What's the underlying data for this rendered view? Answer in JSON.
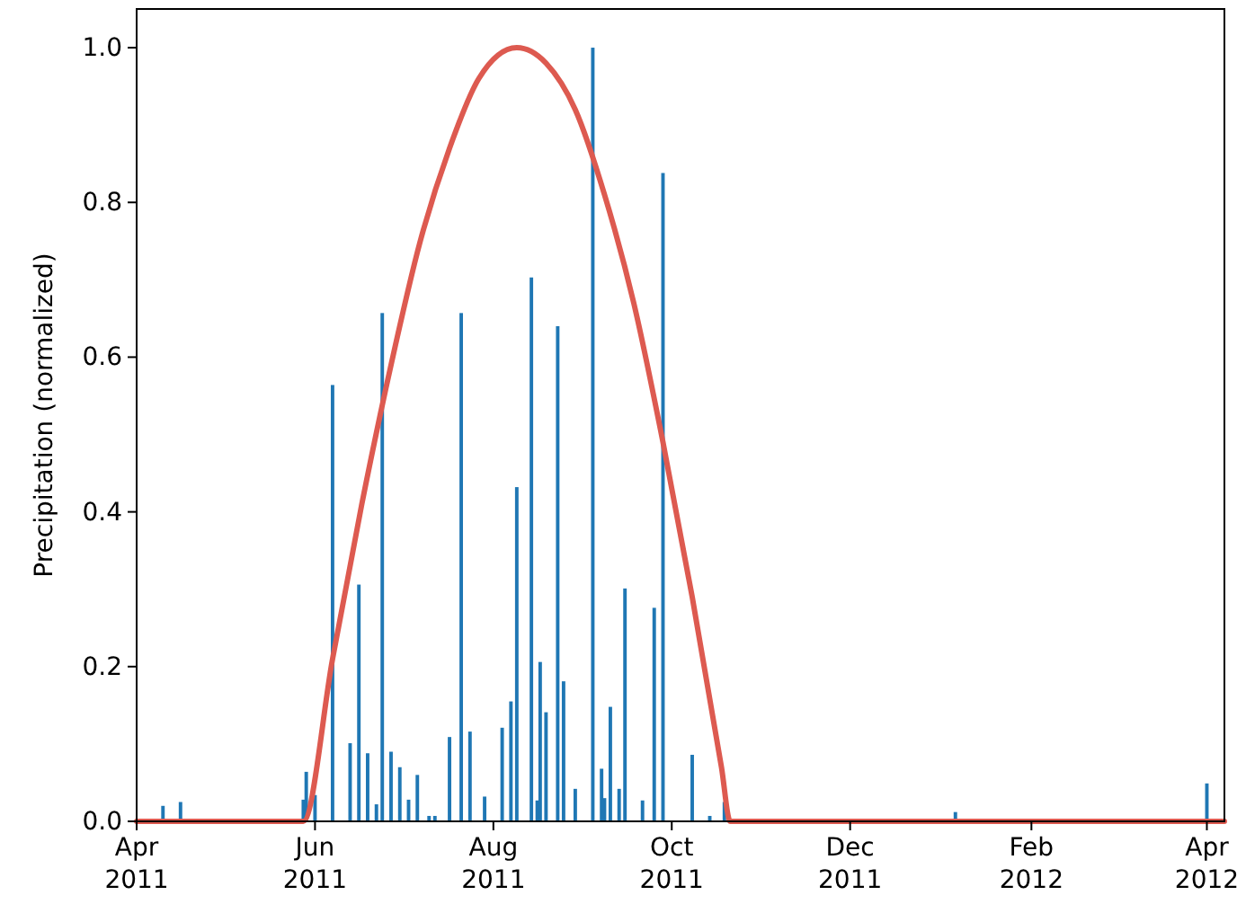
{
  "chart_data": {
    "type": "bar",
    "ylabel": "Precipitation (normalized)",
    "xlim": [
      "2011-04-01",
      "2012-04-07"
    ],
    "xticks": [
      {
        "value": "2011-04-01",
        "label": "Apr\n2011"
      },
      {
        "value": "2011-06-01",
        "label": "Jun\n2011"
      },
      {
        "value": "2011-08-01",
        "label": "Aug\n2011"
      },
      {
        "value": "2011-10-01",
        "label": "Oct\n2011"
      },
      {
        "value": "2011-12-01",
        "label": "Dec\n2011"
      },
      {
        "value": "2012-02-01",
        "label": "Feb\n2012"
      },
      {
        "value": "2012-04-01",
        "label": "Apr\n2012"
      }
    ],
    "ylim": [
      0,
      1.05
    ],
    "yticks": [
      {
        "value": 0,
        "label": "0.0"
      },
      {
        "value": 0.2,
        "label": "0.2"
      },
      {
        "value": 0.4,
        "label": "0.4"
      },
      {
        "value": 0.6,
        "label": "0.6"
      },
      {
        "value": 0.8,
        "label": "0.8"
      },
      {
        "value": 1,
        "label": "1.0"
      }
    ],
    "series": [
      {
        "color": "#1f77b4",
        "x": [
          "2011-04-10",
          "2011-04-16",
          "2011-05-28",
          "2011-05-29",
          "2011-06-01",
          "2011-06-07",
          "2011-06-13",
          "2011-06-16",
          "2011-06-19",
          "2011-06-22",
          "2011-06-24",
          "2011-06-27",
          "2011-06-30",
          "2011-07-03",
          "2011-07-06",
          "2011-07-10",
          "2011-07-12",
          "2011-07-17",
          "2011-07-21",
          "2011-07-24",
          "2011-07-29",
          "2011-08-04",
          "2011-08-07",
          "2011-08-09",
          "2011-08-14",
          "2011-08-16",
          "2011-08-17",
          "2011-08-19",
          "2011-08-23",
          "2011-08-25",
          "2011-08-29",
          "2011-09-04",
          "2011-09-07",
          "2011-09-08",
          "2011-09-10",
          "2011-09-13",
          "2011-09-15",
          "2011-09-21",
          "2011-09-25",
          "2011-09-28",
          "2011-10-08",
          "2011-10-14",
          "2011-10-19",
          "2012-01-06",
          "2012-04-01"
        ],
        "values": [
          0.02,
          0.025,
          0.028,
          0.064,
          0.034,
          0.564,
          0.101,
          0.306,
          0.088,
          0.022,
          0.657,
          0.09,
          0.07,
          0.028,
          0.06,
          0.007,
          0.007,
          0.109,
          0.657,
          0.116,
          0.032,
          0.121,
          0.155,
          0.432,
          0.703,
          0.027,
          0.206,
          0.141,
          0.64,
          0.181,
          0.042,
          1.0,
          0.068,
          0.03,
          0.148,
          0.042,
          0.301,
          0.027,
          0.276,
          0.838,
          0.086,
          0.007,
          0.025,
          0.012,
          0.049
        ]
      },
      {
        "type": "line",
        "color": "#dd5a50",
        "x": [
          "2011-04-01",
          "2011-05-28",
          "2011-06-07",
          "2011-06-17",
          "2011-06-27",
          "2011-07-07",
          "2011-07-17",
          "2011-07-27",
          "2011-08-09",
          "2011-08-19",
          "2011-08-29",
          "2011-09-08",
          "2011-09-18",
          "2011-09-28",
          "2011-10-08",
          "2011-10-18",
          "2011-10-21",
          "2012-04-07"
        ],
        "values": [
          0,
          0,
          0.21,
          0.41,
          0.59,
          0.75,
          0.87,
          0.96,
          1.0,
          0.98,
          0.92,
          0.81,
          0.67,
          0.49,
          0.29,
          0.07,
          0,
          0
        ]
      }
    ]
  }
}
